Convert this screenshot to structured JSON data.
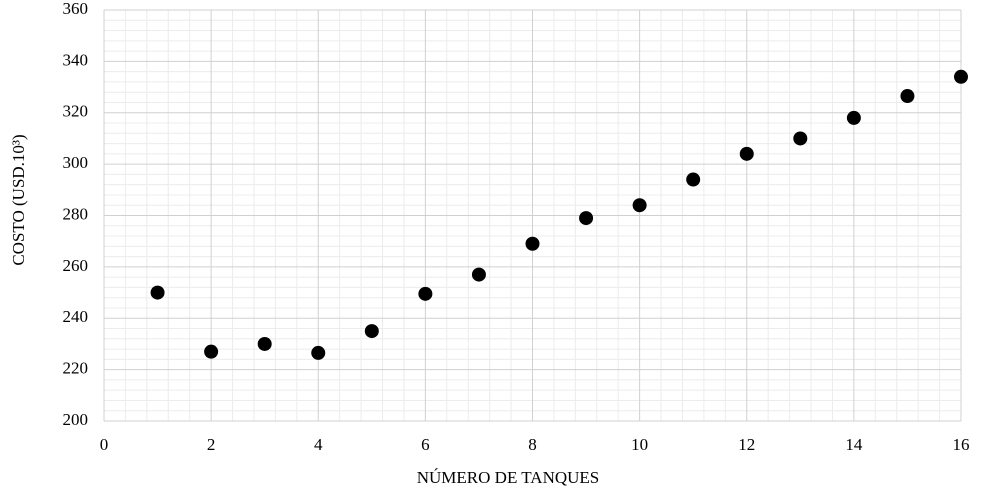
{
  "chart_data": {
    "type": "scatter",
    "x_label": "NÚMERO DE TANQUES",
    "y_label": "COSTO (USD.10³)",
    "series": [
      {
        "color": "#000000",
        "x": [
          1,
          2,
          3,
          4,
          5,
          6,
          7,
          8,
          9,
          10,
          11,
          12,
          13,
          14,
          15,
          16
        ],
        "values": [
          250,
          227,
          230,
          226.5,
          235,
          249.5,
          257,
          269,
          279,
          284,
          294,
          304,
          310,
          318,
          326.5,
          334
        ]
      }
    ],
    "xlim": [
      0,
      16
    ],
    "xticks": [
      0,
      2,
      4,
      6,
      8,
      10,
      12,
      14,
      16
    ],
    "ylim": [
      200,
      360
    ],
    "yticks": [
      200,
      220,
      240,
      260,
      280,
      300,
      320,
      340,
      360
    ],
    "grid": true,
    "minor_grid": true
  }
}
